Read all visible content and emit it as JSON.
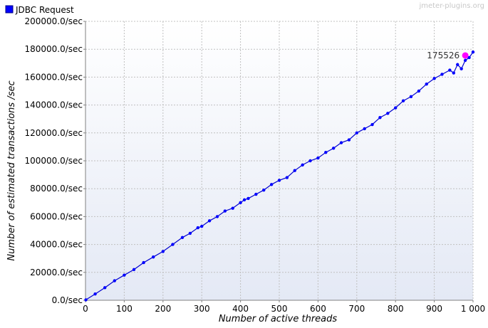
{
  "watermark": "jmeter-plugins.org",
  "colors": {
    "series": "#0000ff",
    "series_line": "#0000cc",
    "highlight": "#ff00ff",
    "grid": "#c0c0c0",
    "plot_top": "#ffffff",
    "plot_bottom": "#e4e9f5"
  },
  "chart_data": {
    "type": "line",
    "xlabel": "Number of active threads",
    "ylabel": "Number of estimated transactions /sec",
    "xlim": [
      0,
      1000
    ],
    "ylim": [
      0,
      200000
    ],
    "x_ticks": [
      0,
      100,
      200,
      300,
      400,
      500,
      600,
      700,
      800,
      900,
      1000
    ],
    "x_tick_labels": [
      "0",
      "100",
      "200",
      "300",
      "400",
      "500",
      "600",
      "700",
      "800",
      "900",
      "1 000"
    ],
    "y_ticks": [
      0,
      20000,
      40000,
      60000,
      80000,
      100000,
      120000,
      140000,
      160000,
      180000,
      200000
    ],
    "y_tick_labels": [
      "0.0/sec",
      "20000.0/sec",
      "40000.0/sec",
      "60000.0/sec",
      "80000.0/sec",
      "100000.0/sec",
      "120000.0/sec",
      "140000.0/sec",
      "160000.0/sec",
      "180000.0/sec",
      "200000.0/sec"
    ],
    "grid": true,
    "legend_position": "top-left",
    "series": [
      {
        "name": "JDBC Request",
        "x": [
          1,
          25,
          50,
          75,
          100,
          125,
          150,
          175,
          200,
          225,
          250,
          270,
          290,
          300,
          320,
          340,
          360,
          380,
          400,
          410,
          420,
          440,
          460,
          480,
          500,
          520,
          540,
          560,
          580,
          600,
          620,
          640,
          660,
          680,
          700,
          720,
          740,
          760,
          780,
          800,
          820,
          840,
          860,
          880,
          900,
          920,
          940,
          950,
          960,
          970,
          980,
          990,
          1000
        ],
        "values": [
          300,
          4500,
          9000,
          14000,
          18000,
          22000,
          27000,
          31000,
          35000,
          40000,
          45000,
          48000,
          52000,
          53000,
          57000,
          60000,
          64000,
          66000,
          70000,
          72000,
          73000,
          76000,
          79000,
          83000,
          86000,
          88000,
          93000,
          97000,
          100000,
          102000,
          106000,
          109000,
          113000,
          115000,
          120000,
          123000,
          126000,
          131000,
          134000,
          138000,
          143000,
          146000,
          150000,
          155000,
          159000,
          162000,
          165000,
          163000,
          169000,
          166000,
          172000,
          174000,
          178000
        ]
      }
    ],
    "highlight_point": {
      "x": 980,
      "y": 175526,
      "label": "175526"
    }
  }
}
